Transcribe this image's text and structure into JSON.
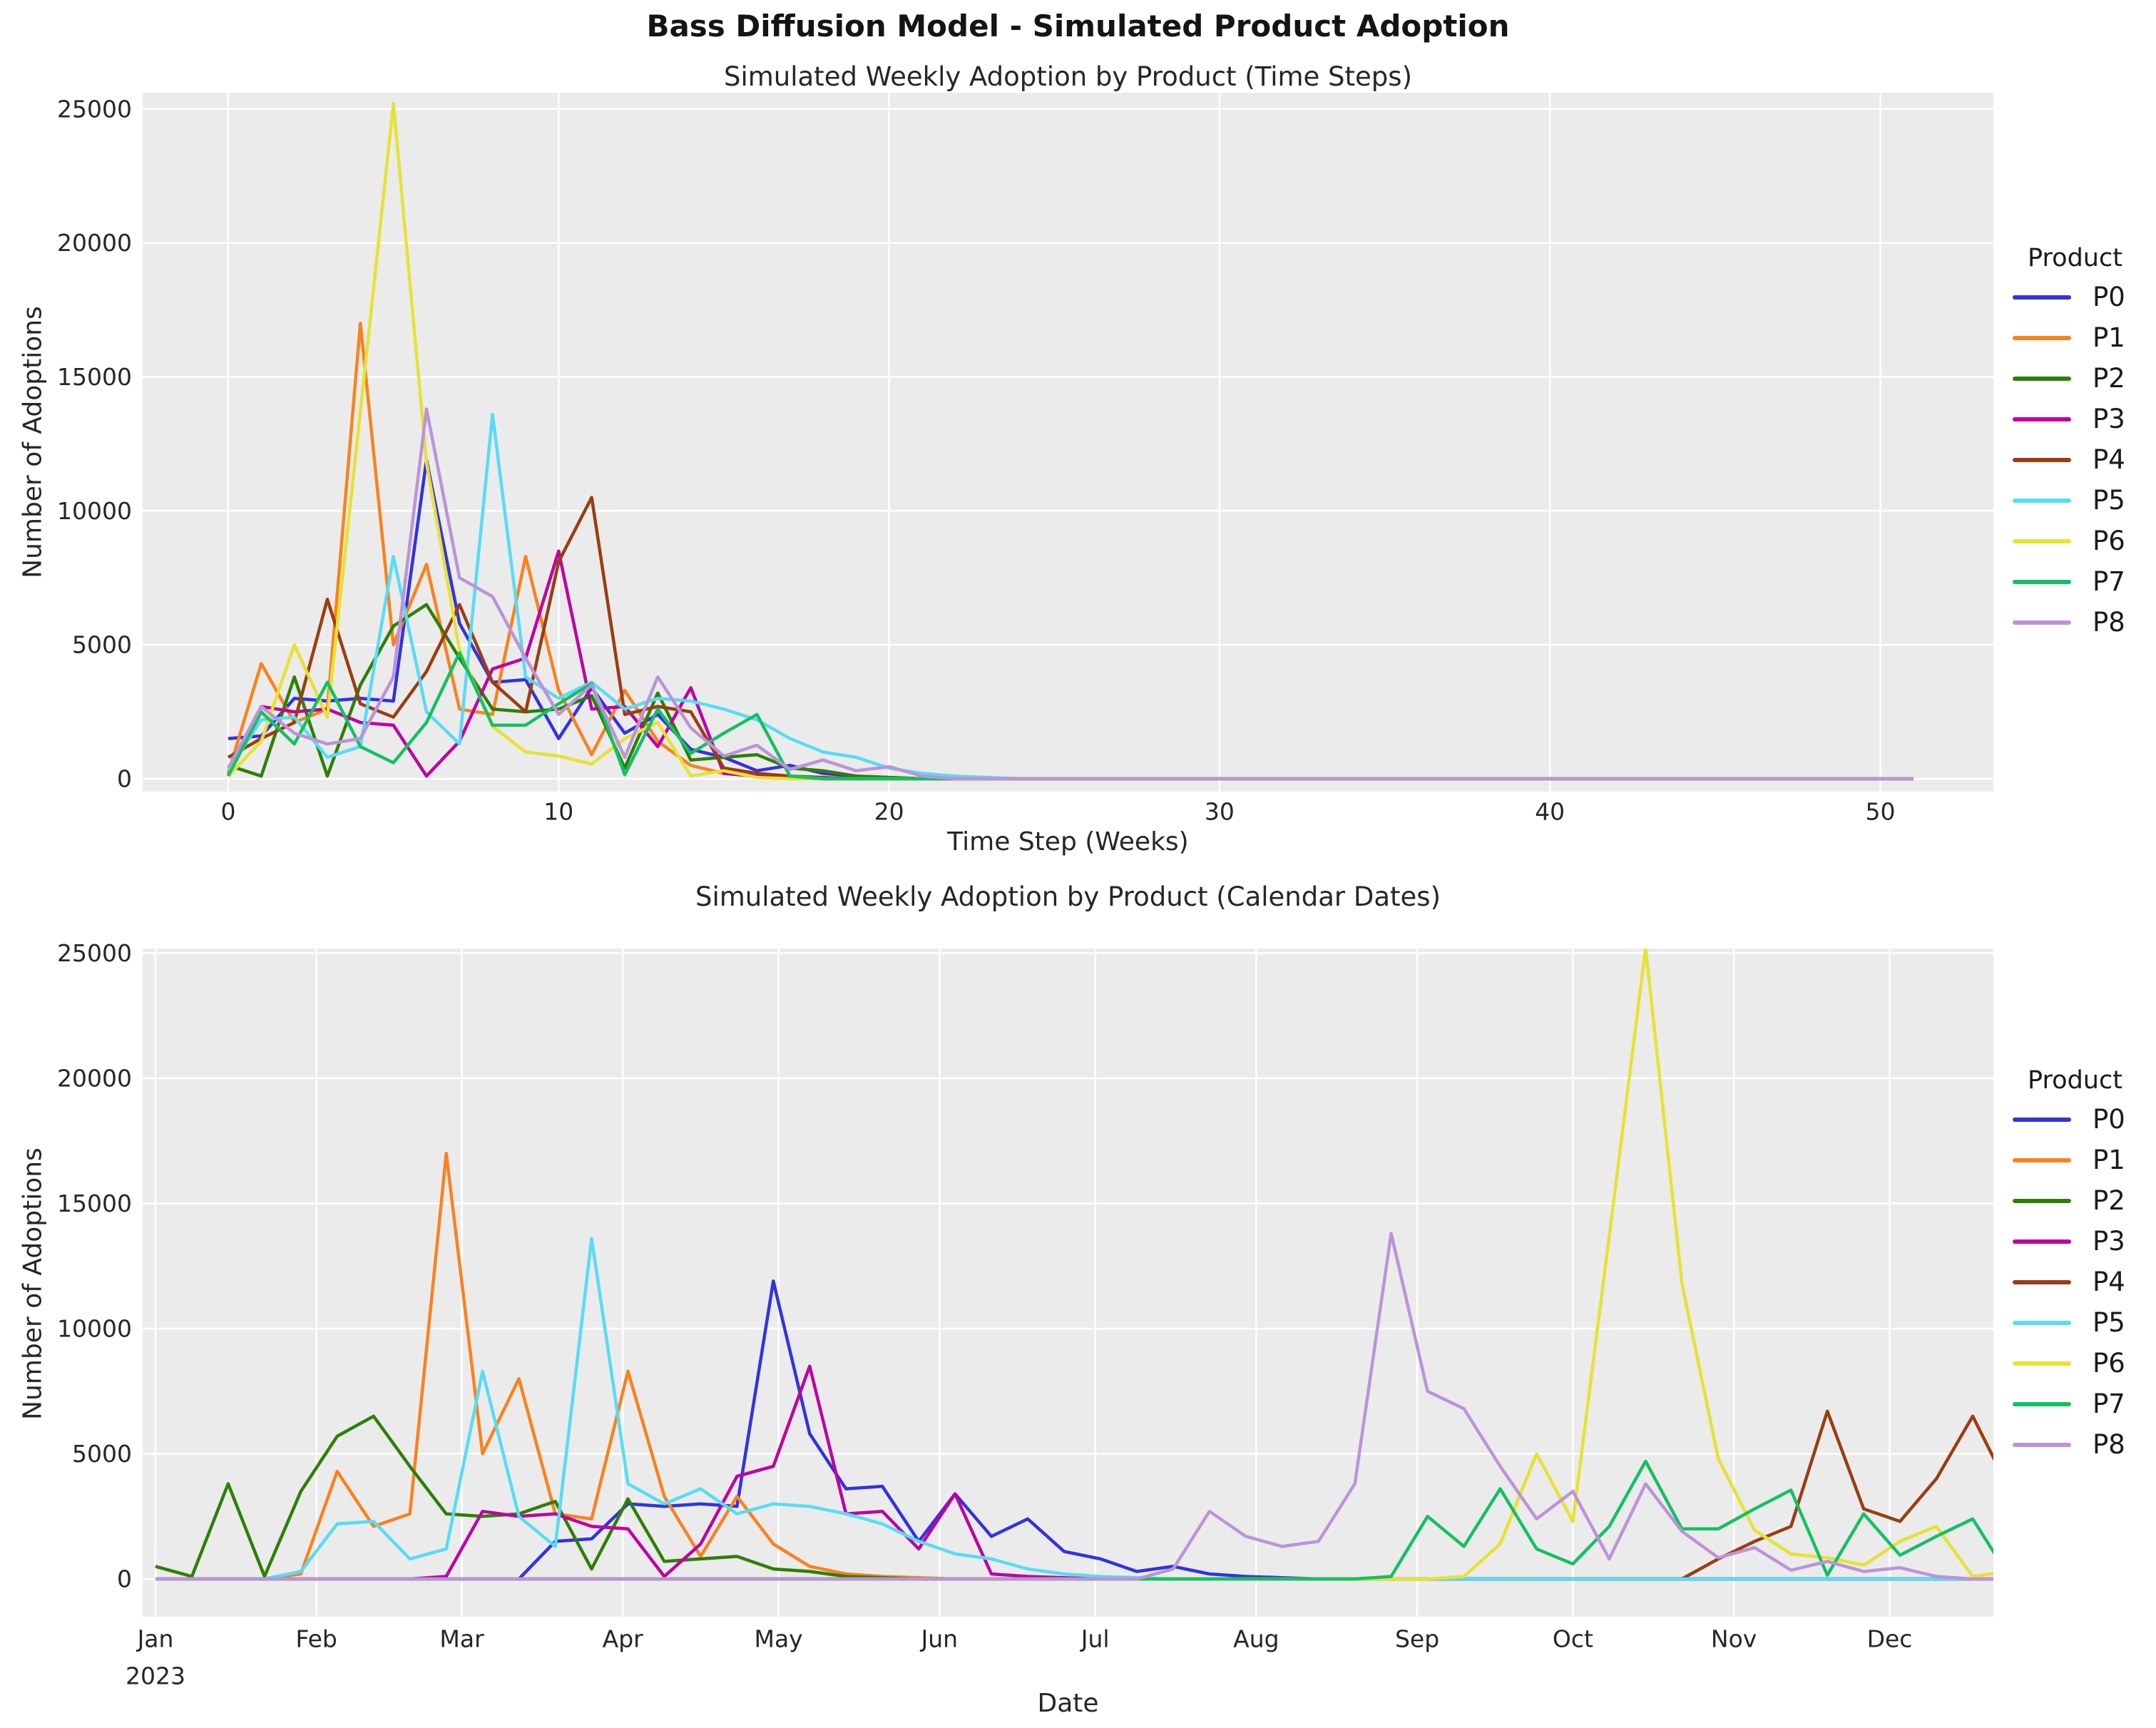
{
  "figure_title": "Bass Diffusion Model - Simulated Product Adoption",
  "legend_title": "Product",
  "year_label": "2023",
  "products": [
    {
      "name": "P0",
      "color": "#3332e0",
      "launch_week": 11,
      "weekly_adoptions": [
        1500,
        1600,
        3000,
        2900,
        3000,
        2900,
        11900,
        5800,
        3600,
        3700,
        1500,
        3400,
        1700,
        2400,
        1100,
        800,
        300,
        500,
        200,
        100,
        50,
        0,
        0,
        0,
        0,
        0,
        0,
        0,
        0,
        0,
        0,
        0,
        0,
        0,
        0,
        0,
        0,
        0,
        0,
        0,
        0,
        0,
        0,
        0,
        0,
        0,
        0,
        0,
        0,
        0,
        0,
        0
      ]
    },
    {
      "name": "P1",
      "color": "#f9821e",
      "launch_week": 4,
      "weekly_adoptions": [
        200,
        4300,
        2100,
        2600,
        17000,
        5000,
        8000,
        2600,
        2400,
        8300,
        3300,
        900,
        3300,
        1400,
        500,
        200,
        100,
        50,
        0,
        0,
        0,
        0,
        0,
        0,
        0,
        0,
        0,
        0,
        0,
        0,
        0,
        0,
        0,
        0,
        0,
        0,
        0,
        0,
        0,
        0,
        0,
        0,
        0,
        0,
        0,
        0,
        0,
        0,
        0,
        0,
        0,
        0
      ]
    },
    {
      "name": "P2",
      "color": "#2d8006",
      "launch_week": 0,
      "weekly_adoptions": [
        500,
        100,
        3800,
        100,
        3500,
        5700,
        6500,
        4500,
        2600,
        2500,
        2600,
        3100,
        400,
        3200,
        700,
        800,
        900,
        400,
        300,
        100,
        50,
        0,
        0,
        0,
        0,
        0,
        0,
        0,
        0,
        0,
        0,
        0,
        0,
        0,
        0,
        0,
        0,
        0,
        0,
        0,
        0,
        0,
        0,
        0,
        0,
        0,
        0,
        0,
        0,
        0,
        0,
        0
      ]
    },
    {
      "name": "P3",
      "color": "#bf00a0",
      "launch_week": 8,
      "weekly_adoptions": [
        100,
        2700,
        2500,
        2600,
        2100,
        2000,
        100,
        1400,
        4100,
        4500,
        8500,
        2600,
        2700,
        1200,
        3400,
        200,
        100,
        50,
        0,
        0,
        0,
        0,
        0,
        0,
        0,
        0,
        0,
        0,
        0,
        0,
        0,
        0,
        0,
        0,
        0,
        0,
        0,
        0,
        0,
        0,
        0,
        0,
        0,
        0,
        0,
        0,
        0,
        0,
        0,
        0,
        0,
        0
      ]
    },
    {
      "name": "P4",
      "color": "#9b3d12",
      "launch_week": 43,
      "weekly_adoptions": [
        800,
        1500,
        2100,
        6700,
        2800,
        2300,
        4000,
        6500,
        3600,
        2500,
        8100,
        10500,
        2400,
        2700,
        2500,
        400,
        200,
        100,
        50,
        0,
        0,
        0,
        0,
        0,
        0,
        0,
        0,
        0,
        0,
        0,
        0,
        0,
        0,
        0,
        0,
        0,
        0,
        0,
        0,
        0,
        0,
        0,
        0,
        0,
        0,
        0,
        0,
        0,
        0,
        0,
        0,
        0
      ]
    },
    {
      "name": "P5",
      "color": "#58dcf5",
      "launch_week": 4,
      "weekly_adoptions": [
        300,
        2200,
        2300,
        800,
        1200,
        8300,
        2500,
        1300,
        13600,
        3800,
        3000,
        3600,
        2600,
        3000,
        2900,
        2600,
        2200,
        1500,
        1000,
        800,
        400,
        200,
        100,
        50,
        0,
        0,
        0,
        0,
        0,
        0,
        0,
        0,
        0,
        0,
        0,
        0,
        0,
        0,
        0,
        0,
        0,
        0,
        0,
        0,
        0,
        0,
        0,
        0,
        0,
        0,
        0,
        0
      ]
    },
    {
      "name": "P6",
      "color": "#e6e234",
      "launch_week": 36,
      "weekly_adoptions": [
        100,
        1400,
        5000,
        2300,
        13700,
        25200,
        11800,
        4800,
        1950,
        1000,
        850,
        550,
        1500,
        2100,
        100,
        300,
        50,
        0,
        0,
        0,
        0,
        0,
        0,
        0,
        0,
        0,
        0,
        0,
        0,
        0,
        0,
        0,
        0,
        0,
        0,
        0,
        0,
        0,
        0,
        0,
        0,
        0,
        0,
        0,
        0,
        0,
        0,
        0,
        0,
        0,
        0,
        0
      ]
    },
    {
      "name": "P7",
      "color": "#14c064",
      "launch_week": 34,
      "weekly_adoptions": [
        100,
        2500,
        1300,
        3600,
        1200,
        600,
        2100,
        4700,
        2000,
        2000,
        2800,
        3550,
        150,
        2600,
        950,
        1700,
        2400,
        100,
        0,
        0,
        0,
        0,
        0,
        0,
        0,
        0,
        0,
        0,
        0,
        0,
        0,
        0,
        0,
        0,
        0,
        0,
        0,
        0,
        0,
        0,
        0,
        0,
        0,
        0,
        0,
        0,
        0,
        0,
        0,
        0,
        0,
        0
      ]
    },
    {
      "name": "P8",
      "color": "#bc93d8",
      "launch_week": 28,
      "weekly_adoptions": [
        400,
        2700,
        1700,
        1300,
        1500,
        3800,
        13800,
        7500,
        6800,
        4500,
        2400,
        3500,
        800,
        3800,
        1900,
        850,
        1250,
        350,
        700,
        300,
        450,
        100,
        0,
        0,
        0,
        0,
        0,
        0,
        0,
        0,
        0,
        0,
        0,
        0,
        0,
        0,
        0,
        0,
        0,
        0,
        0,
        0,
        0,
        0,
        0,
        0,
        0,
        0,
        0,
        0,
        0,
        0
      ]
    }
  ],
  "chart_data": [
    {
      "type": "line",
      "title": "Simulated Weekly Adoption by Product (Time Steps)",
      "xlabel": "Time Step (Weeks)",
      "ylabel": "Number of Adoptions",
      "x_mode": "weeks",
      "xticks": [
        0,
        10,
        20,
        30,
        40,
        50
      ],
      "yticks": [
        0,
        5000,
        10000,
        15000,
        20000,
        25000
      ],
      "xlim": [
        -2.6,
        53.4
      ],
      "ylim": [
        -500,
        25600
      ],
      "grid": true,
      "legend_position": "right",
      "series_source": "products.weekly_adoptions indexed by week 0-51"
    },
    {
      "type": "line",
      "title": "Simulated Weekly Adoption by Product (Calendar Dates)",
      "xlabel": "Date",
      "ylabel": "Number of Adoptions",
      "x_mode": "dates",
      "xtick_labels": [
        "Jan",
        "Feb",
        "Mar",
        "Apr",
        "May",
        "Jun",
        "Jul",
        "Aug",
        "Sep",
        "Oct",
        "Nov",
        "Dec"
      ],
      "month_start_days": [
        0,
        31,
        59,
        90,
        120,
        151,
        181,
        212,
        243,
        273,
        304,
        334
      ],
      "yticks": [
        0,
        5000,
        10000,
        15000,
        20000,
        25000
      ],
      "xlim_days": [
        -2,
        354
      ],
      "ylim": [
        -500,
        26200
      ],
      "grid": true,
      "legend_position": "right",
      "series_source": "products.weekly_adoptions shifted by products.launch_week, weekly dates in 2023"
    }
  ]
}
